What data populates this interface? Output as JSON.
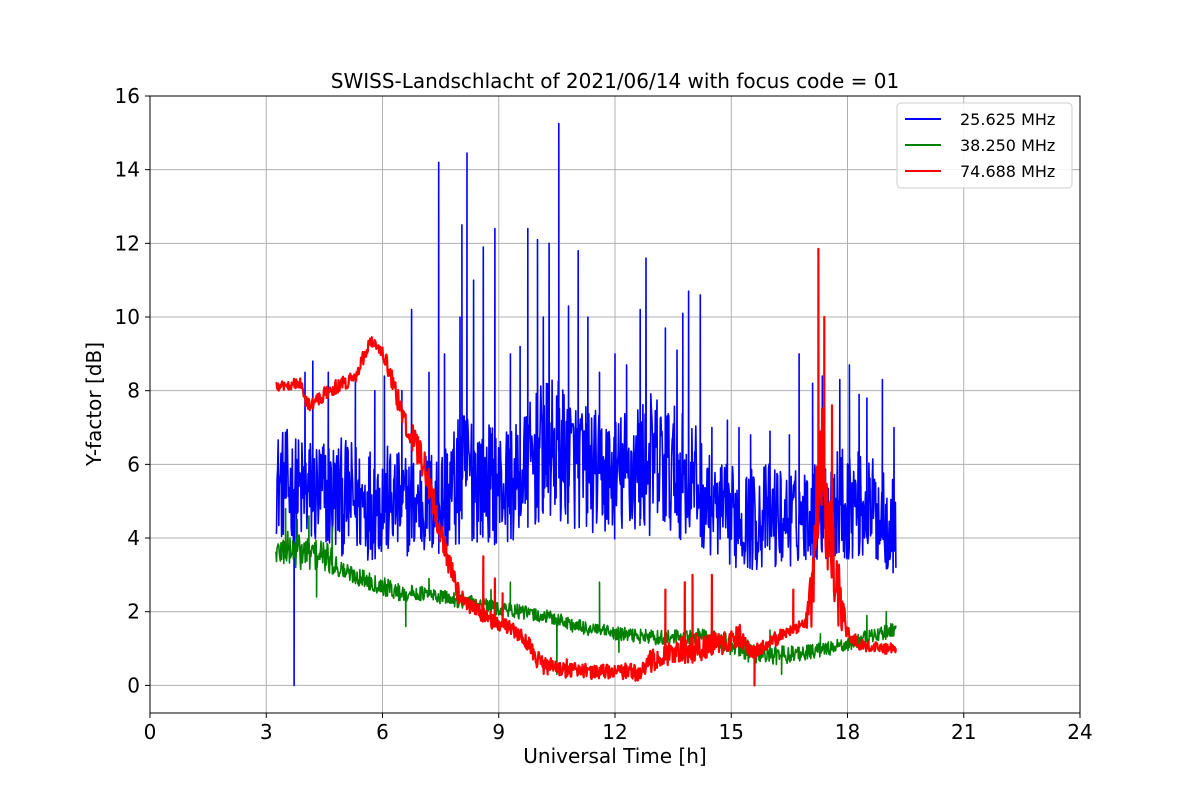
{
  "chart_data": {
    "type": "line",
    "title": "SWISS-Landschlacht of 2021/06/14 with focus code = 01",
    "xlabel": "Universal Time [h]",
    "ylabel": "Y-factor [dB]",
    "xlim": [
      0,
      24
    ],
    "ylim": [
      -0.75,
      16
    ],
    "xticks": [
      0,
      3,
      6,
      9,
      12,
      15,
      18,
      21,
      24
    ],
    "yticks": [
      0,
      2,
      4,
      6,
      8,
      10,
      12,
      14,
      16
    ],
    "grid": true,
    "legend_position": "top-right",
    "series": [
      {
        "name": "25.625 MHz",
        "color": "#0000ff",
        "x": [
          3.25,
          3.5,
          3.75,
          4.0,
          4.5,
          5.0,
          5.5,
          6.0,
          6.5,
          7.0,
          7.5,
          8.0,
          8.2,
          8.5,
          9.0,
          9.5,
          10.0,
          10.5,
          11.0,
          11.5,
          12.0,
          12.5,
          13.0,
          13.5,
          14.0,
          14.5,
          15.0,
          15.5,
          16.0,
          16.5,
          17.0,
          17.5,
          18.0,
          18.5,
          19.0,
          19.25
        ],
        "center": [
          5.5,
          5.4,
          5.3,
          5.2,
          5.2,
          5.1,
          5.0,
          5.0,
          4.9,
          4.9,
          5.0,
          5.5,
          5.8,
          5.6,
          5.4,
          5.5,
          6.2,
          6.4,
          6.0,
          5.8,
          5.6,
          5.9,
          6.0,
          5.8,
          5.6,
          4.8,
          4.6,
          4.5,
          4.6,
          4.5,
          4.7,
          4.8,
          5.0,
          4.8,
          4.6,
          4.2
        ],
        "halfwidth": [
          1.4,
          1.6,
          1.5,
          1.6,
          1.6,
          1.6,
          1.6,
          1.6,
          1.4,
          1.4,
          1.6,
          1.8,
          2.0,
          1.7,
          1.6,
          1.6,
          1.9,
          2.0,
          1.8,
          1.7,
          1.7,
          1.9,
          2.0,
          1.8,
          1.7,
          1.3,
          1.4,
          1.4,
          1.5,
          1.3,
          1.3,
          1.5,
          1.6,
          1.4,
          1.5,
          1.2
        ],
        "spikes": [
          [
            3.72,
            0.0
          ],
          [
            4.0,
            8.5
          ],
          [
            4.2,
            8.8
          ],
          [
            4.6,
            8.5
          ],
          [
            5.3,
            8.3
          ],
          [
            5.8,
            8.0
          ],
          [
            6.05,
            8.4
          ],
          [
            6.5,
            8.0
          ],
          [
            6.75,
            10.2
          ],
          [
            7.2,
            8.5
          ],
          [
            7.45,
            14.2
          ],
          [
            7.6,
            9.0
          ],
          [
            8.0,
            10.0
          ],
          [
            8.05,
            12.5
          ],
          [
            8.18,
            14.45
          ],
          [
            8.35,
            11.0
          ],
          [
            8.6,
            11.9
          ],
          [
            8.9,
            12.4
          ],
          [
            9.3,
            9.0
          ],
          [
            9.55,
            9.2
          ],
          [
            9.75,
            12.4
          ],
          [
            10.0,
            12.1
          ],
          [
            10.15,
            10.0
          ],
          [
            10.3,
            12.0
          ],
          [
            10.55,
            15.25
          ],
          [
            10.8,
            10.3
          ],
          [
            11.05,
            11.8
          ],
          [
            11.3,
            10.0
          ],
          [
            11.6,
            8.5
          ],
          [
            12.0,
            9.0
          ],
          [
            12.3,
            8.7
          ],
          [
            12.65,
            10.2
          ],
          [
            12.8,
            11.6
          ],
          [
            13.3,
            9.7
          ],
          [
            13.6,
            9.1
          ],
          [
            13.75,
            10.1
          ],
          [
            13.9,
            10.7
          ],
          [
            14.2,
            10.6
          ],
          [
            14.5,
            7.0
          ],
          [
            14.9,
            7.2
          ],
          [
            15.2,
            7.0
          ],
          [
            15.5,
            6.8
          ],
          [
            16.0,
            6.9
          ],
          [
            16.5,
            6.8
          ],
          [
            16.75,
            9.0
          ],
          [
            17.1,
            8.2
          ],
          [
            17.35,
            8.4
          ],
          [
            17.8,
            8.3
          ],
          [
            18.05,
            8.7
          ],
          [
            18.3,
            7.9
          ],
          [
            18.5,
            7.8
          ],
          [
            18.9,
            8.3
          ],
          [
            19.2,
            7.0
          ]
        ]
      },
      {
        "name": "38.250 MHz",
        "color": "#008000",
        "x": [
          3.25,
          3.5,
          4.0,
          4.5,
          5.0,
          5.5,
          6.0,
          6.5,
          7.0,
          7.5,
          8.0,
          8.5,
          9.0,
          9.5,
          10.0,
          10.5,
          11.0,
          11.5,
          12.0,
          12.5,
          13.0,
          13.5,
          14.0,
          14.5,
          15.0,
          15.5,
          16.0,
          16.5,
          17.0,
          17.5,
          18.0,
          18.5,
          19.0,
          19.25
        ],
        "center": [
          3.6,
          3.7,
          3.6,
          3.5,
          3.1,
          2.9,
          2.7,
          2.5,
          2.5,
          2.4,
          2.3,
          2.2,
          2.1,
          2.0,
          1.9,
          1.8,
          1.6,
          1.5,
          1.4,
          1.35,
          1.3,
          1.3,
          1.35,
          1.3,
          1.1,
          0.9,
          0.8,
          0.85,
          0.9,
          1.0,
          1.1,
          1.3,
          1.45,
          1.55
        ],
        "halfwidth": [
          0.35,
          0.5,
          0.5,
          0.45,
          0.25,
          0.25,
          0.25,
          0.25,
          0.2,
          0.2,
          0.2,
          0.2,
          0.2,
          0.2,
          0.2,
          0.2,
          0.2,
          0.2,
          0.2,
          0.2,
          0.2,
          0.2,
          0.2,
          0.2,
          0.3,
          0.3,
          0.25,
          0.25,
          0.2,
          0.2,
          0.2,
          0.2,
          0.2,
          0.2
        ],
        "spikes": [
          [
            3.5,
            4.8
          ],
          [
            3.8,
            4.5
          ],
          [
            4.1,
            4.6
          ],
          [
            4.3,
            2.4
          ],
          [
            4.7,
            4.3
          ],
          [
            6.6,
            1.6
          ],
          [
            7.2,
            2.9
          ],
          [
            8.8,
            2.6
          ],
          [
            9.3,
            2.8
          ],
          [
            10.5,
            0.3
          ],
          [
            11.6,
            2.8
          ],
          [
            12.1,
            0.9
          ],
          [
            13.3,
            2.0
          ],
          [
            15.2,
            0.8
          ],
          [
            16.0,
            1.5
          ],
          [
            16.3,
            0.3
          ],
          [
            17.3,
            1.4
          ],
          [
            18.5,
            1.9
          ],
          [
            19.0,
            2.0
          ]
        ]
      },
      {
        "name": "74.688 MHz",
        "color": "#ff0000",
        "x": [
          3.25,
          3.5,
          3.75,
          3.9,
          4.0,
          4.1,
          4.3,
          4.5,
          4.8,
          5.0,
          5.3,
          5.5,
          5.7,
          5.9,
          6.1,
          6.3,
          6.5,
          6.7,
          6.9,
          7.1,
          7.3,
          7.5,
          7.7,
          7.9,
          8.0,
          8.2,
          8.5,
          8.8,
          9.0,
          9.2,
          9.5,
          9.8,
          10.0,
          10.2,
          10.5,
          10.8,
          11.0,
          11.5,
          12.0,
          12.5,
          12.8,
          13.0,
          13.5,
          14.0,
          14.5,
          15.0,
          15.2,
          15.5,
          15.8,
          16.0,
          16.5,
          16.9,
          17.1,
          17.2,
          17.35,
          17.5,
          17.7,
          17.9,
          18.0,
          18.2,
          18.5,
          19.0,
          19.25
        ],
        "center": [
          8.1,
          8.15,
          8.2,
          8.2,
          7.7,
          7.6,
          7.7,
          7.9,
          8.1,
          8.2,
          8.4,
          8.9,
          9.35,
          9.2,
          8.8,
          8.1,
          7.4,
          6.9,
          6.4,
          5.9,
          5.0,
          4.2,
          3.4,
          2.7,
          2.4,
          2.2,
          2.0,
          1.8,
          1.65,
          1.6,
          1.4,
          1.1,
          0.7,
          0.5,
          0.5,
          0.45,
          0.45,
          0.35,
          0.4,
          0.35,
          0.5,
          0.7,
          0.9,
          1.0,
          1.1,
          1.2,
          1.4,
          0.9,
          1.0,
          1.2,
          1.45,
          1.6,
          2.5,
          4.5,
          5.5,
          4.5,
          3.0,
          1.8,
          1.4,
          1.2,
          1.05,
          1.0,
          1.0
        ],
        "halfwidth": [
          0.15,
          0.15,
          0.15,
          0.15,
          0.2,
          0.2,
          0.2,
          0.2,
          0.2,
          0.2,
          0.2,
          0.2,
          0.15,
          0.15,
          0.25,
          0.3,
          0.3,
          0.35,
          0.4,
          0.45,
          0.45,
          0.4,
          0.35,
          0.3,
          0.25,
          0.2,
          0.25,
          0.25,
          0.2,
          0.2,
          0.2,
          0.25,
          0.25,
          0.25,
          0.25,
          0.25,
          0.2,
          0.2,
          0.2,
          0.25,
          0.3,
          0.35,
          0.35,
          0.4,
          0.35,
          0.3,
          0.3,
          0.25,
          0.2,
          0.2,
          0.2,
          0.2,
          0.9,
          1.6,
          2.2,
          1.8,
          1.3,
          0.5,
          0.25,
          0.2,
          0.15,
          0.15,
          0.15
        ],
        "spikes": [
          [
            8.6,
            3.5
          ],
          [
            8.9,
            2.9
          ],
          [
            9.1,
            2.5
          ],
          [
            13.3,
            2.6
          ],
          [
            13.8,
            2.8
          ],
          [
            14.0,
            3.0
          ],
          [
            14.5,
            3.0
          ],
          [
            15.6,
            0.0
          ],
          [
            16.6,
            2.6
          ],
          [
            17.25,
            11.85
          ],
          [
            17.4,
            10.0
          ],
          [
            17.6,
            7.6
          ]
        ]
      }
    ]
  }
}
